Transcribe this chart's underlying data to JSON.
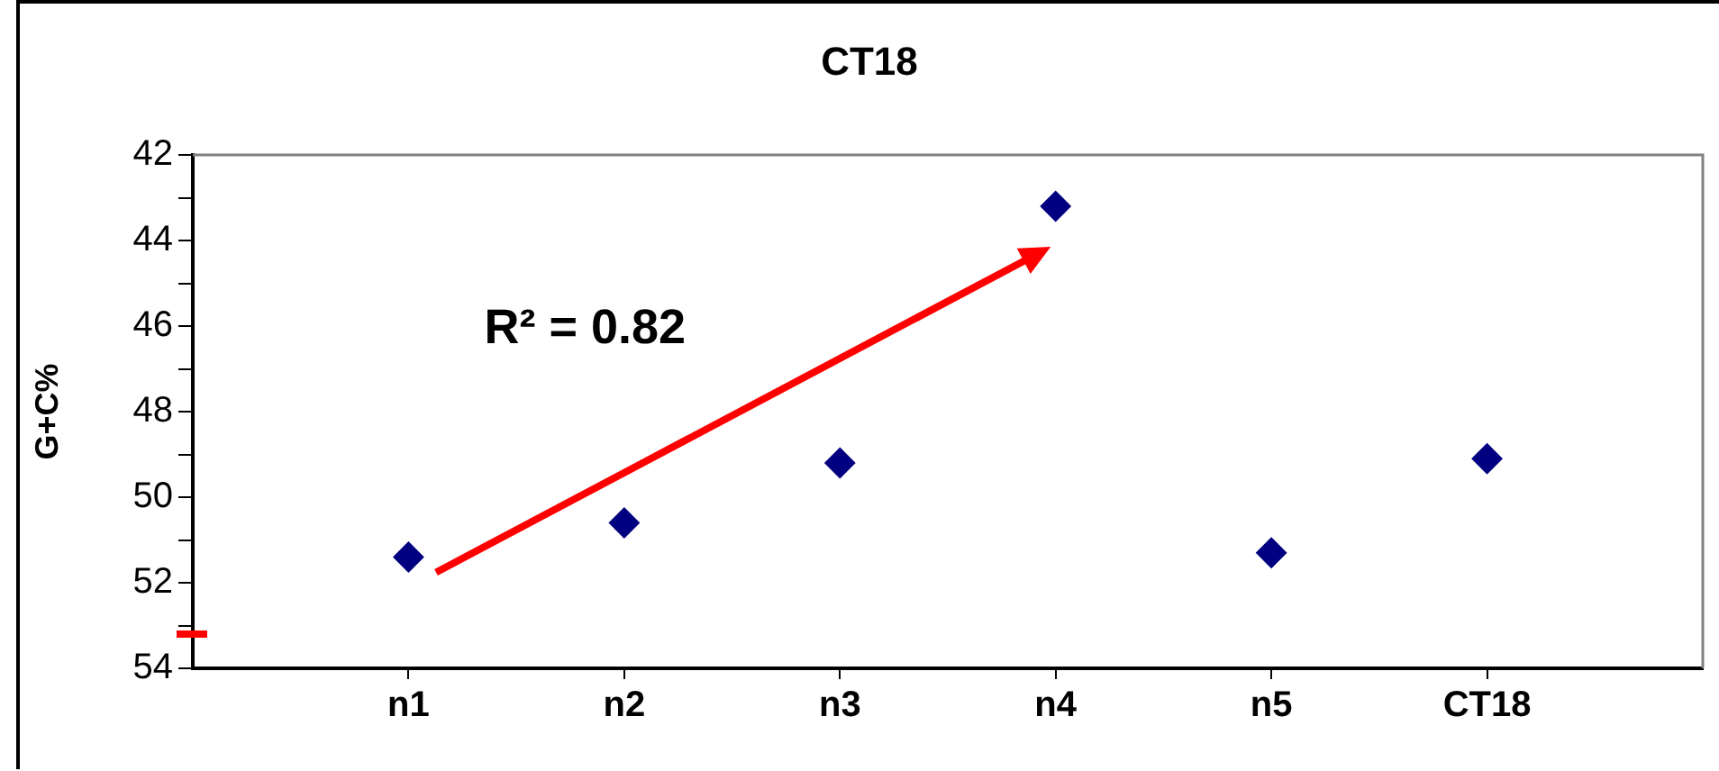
{
  "chart_data": {
    "type": "scatter",
    "title": "CT18",
    "ylabel": "G+C%",
    "categories": [
      "n1",
      "n2",
      "n3",
      "n4",
      "n5",
      "CT18"
    ],
    "series": [
      {
        "color": "#000080",
        "values": [
          51.4,
          50.6,
          49.2,
          43.2,
          51.3,
          49.1
        ]
      }
    ],
    "ylim": [
      54,
      42
    ],
    "yticks": [
      42,
      {
        "value": 43,
        "label": null
      },
      44,
      {
        "value": 45,
        "label": null
      },
      46,
      {
        "value": 47,
        "label": null
      },
      48,
      {
        "value": 49,
        "label": null
      },
      50,
      {
        "value": 51,
        "label": null
      },
      52,
      {
        "value": 53,
        "label": null
      },
      54
    ],
    "marker": "diamond",
    "annotations": [
      "R² = 0.82"
    ]
  }
}
